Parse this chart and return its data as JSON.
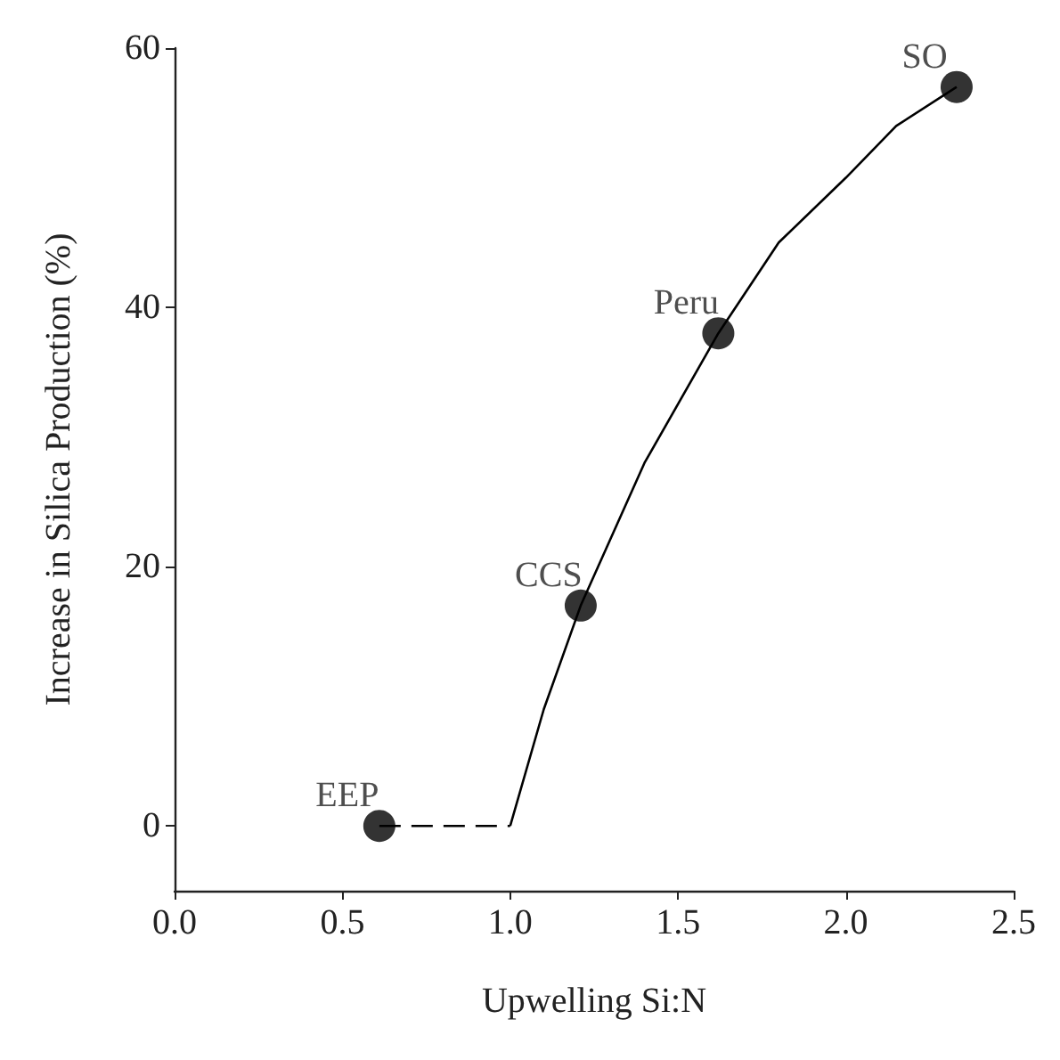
{
  "chart_data": {
    "type": "scatter",
    "xlabel": "Upwelling Si:N",
    "ylabel": "Increase in Silica Production (%)",
    "xlim": [
      0,
      2.5
    ],
    "xticks": [
      {
        "value": 0,
        "label": "0.0"
      },
      {
        "value": 0.5,
        "label": "0.5"
      },
      {
        "value": 1,
        "label": "1.0"
      },
      {
        "value": 1.5,
        "label": "1.5"
      },
      {
        "value": 2,
        "label": "2.0"
      },
      {
        "value": 2.5,
        "label": "2.5"
      }
    ],
    "ylim": [
      -5,
      60
    ],
    "yticks": [
      0,
      20,
      40,
      60
    ],
    "grid": false,
    "series": [
      {
        "type": "line",
        "color": "#000000",
        "line_style": "dashed",
        "marker": "none",
        "x": [
          0.61,
          1.0
        ],
        "values": [
          0,
          0
        ]
      },
      {
        "type": "line",
        "color": "#000000",
        "line_style": "solid",
        "marker": "none",
        "x": [
          1.0,
          1.1,
          1.21,
          1.4,
          1.62,
          1.8,
          2.0,
          2.15,
          2.33
        ],
        "values": [
          0,
          9,
          17,
          28,
          38,
          45,
          50,
          54,
          57
        ]
      },
      {
        "color": "#000000",
        "marker": "circle",
        "x": [
          0.61,
          1.21,
          1.62,
          2.33
        ],
        "values": [
          0,
          17,
          38,
          57
        ]
      }
    ],
    "annotations": [
      {
        "text": "EEP",
        "x": 0.61,
        "y": 0
      },
      {
        "text": "CCS",
        "x": 1.21,
        "y": 17
      },
      {
        "text": "Peru",
        "x": 1.62,
        "y": 38
      },
      {
        "text": "SO",
        "x": 2.33,
        "y": 57
      }
    ]
  }
}
